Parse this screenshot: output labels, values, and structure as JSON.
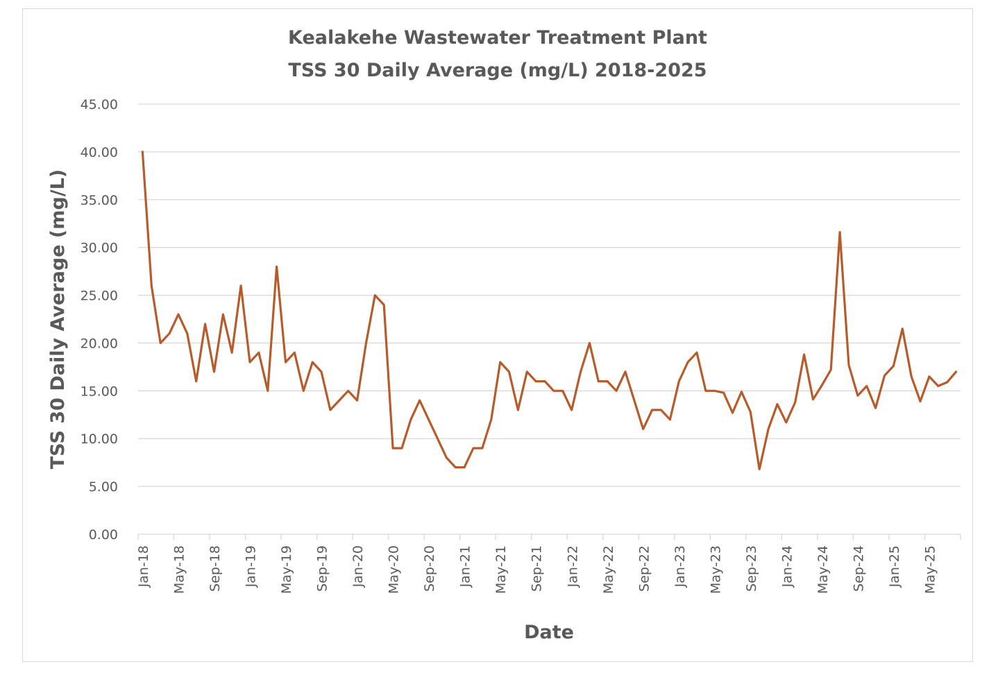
{
  "chart_data": {
    "type": "line",
    "title": [
      "Kealakehe Wastewater Treatment Plant",
      "TSS 30 Daily Average (mg/L) 2018-2025"
    ],
    "xlabel": "Date",
    "ylabel": "TSS 30 Daily Average (mg/L)",
    "ylim": [
      0,
      45
    ],
    "yticks": [
      "0.00",
      "5.00",
      "10.00",
      "15.00",
      "20.00",
      "25.00",
      "30.00",
      "35.00",
      "40.00",
      "45.00"
    ],
    "grid": true,
    "legend": "none",
    "line_color": "#B85B2A",
    "xtick_labels": [
      "Jan-18",
      "May-18",
      "Sep-18",
      "Jan-19",
      "May-19",
      "Sep-19",
      "Jan-20",
      "May-20",
      "Sep-20",
      "Jan-21",
      "May-21",
      "Sep-21",
      "Jan-22",
      "May-22",
      "Sep-22",
      "Jan-23",
      "May-23",
      "Sep-23",
      "Jan-24",
      "May-24",
      "Sep-24",
      "Jan-25",
      "May-25"
    ],
    "x": [
      "Jan-18",
      "Feb-18",
      "Mar-18",
      "Apr-18",
      "May-18",
      "Jun-18",
      "Jul-18",
      "Aug-18",
      "Sep-18",
      "Oct-18",
      "Nov-18",
      "Dec-18",
      "Jan-19",
      "Feb-19",
      "Mar-19",
      "Apr-19",
      "May-19",
      "Jun-19",
      "Jul-19",
      "Aug-19",
      "Sep-19",
      "Oct-19",
      "Nov-19",
      "Dec-19",
      "Jan-20",
      "Feb-20",
      "Mar-20",
      "Apr-20",
      "May-20",
      "Jun-20",
      "Jul-20",
      "Aug-20",
      "Sep-20",
      "Oct-20",
      "Nov-20",
      "Dec-20",
      "Jan-21",
      "Feb-21",
      "Mar-21",
      "Apr-21",
      "May-21",
      "Jun-21",
      "Jul-21",
      "Aug-21",
      "Sep-21",
      "Oct-21",
      "Nov-21",
      "Dec-21",
      "Jan-22",
      "Feb-22",
      "Mar-22",
      "Apr-22",
      "May-22",
      "Jun-22",
      "Jul-22",
      "Aug-22",
      "Sep-22",
      "Oct-22",
      "Nov-22",
      "Dec-22",
      "Jan-23",
      "Feb-23",
      "Mar-23",
      "Apr-23",
      "May-23",
      "Jun-23",
      "Jul-23",
      "Aug-23",
      "Sep-23",
      "Oct-23",
      "Nov-23",
      "Dec-23",
      "Jan-24",
      "Feb-24",
      "Mar-24",
      "Apr-24",
      "May-24",
      "Jun-24",
      "Jul-24",
      "Aug-24",
      "Sep-24",
      "Oct-24",
      "Nov-24",
      "Dec-24",
      "Jan-25",
      "Feb-25",
      "Mar-25",
      "Apr-25",
      "May-25",
      "Jun-25",
      "Jul-25",
      "Aug-25"
    ],
    "series": [
      {
        "name": "TSS 30 Daily Average (mg/L)",
        "values": [
          40,
          26,
          20,
          21,
          23,
          21,
          16,
          22,
          17,
          23,
          19,
          26,
          18,
          19,
          15,
          28,
          18,
          19,
          15,
          18,
          17,
          13,
          14,
          15,
          14,
          20,
          25,
          24,
          9,
          9,
          12,
          14,
          12,
          10,
          8,
          7,
          7,
          9,
          9,
          12,
          18,
          17,
          13,
          17,
          16,
          16,
          15,
          15,
          13,
          17,
          20,
          16,
          16,
          15,
          17,
          14,
          11,
          13,
          13,
          12,
          16,
          18,
          19,
          15,
          15,
          14.8,
          12.7,
          14.9,
          12.8,
          6.8,
          11,
          13.6,
          11.7,
          13.8,
          18.8,
          14.1,
          15.6,
          17.2,
          31.6,
          17.7,
          14.5,
          15.5,
          13.2,
          16.6,
          17.6,
          21.5,
          16.5,
          13.9,
          16.5,
          15.5,
          15.9,
          17.0
        ]
      }
    ]
  }
}
